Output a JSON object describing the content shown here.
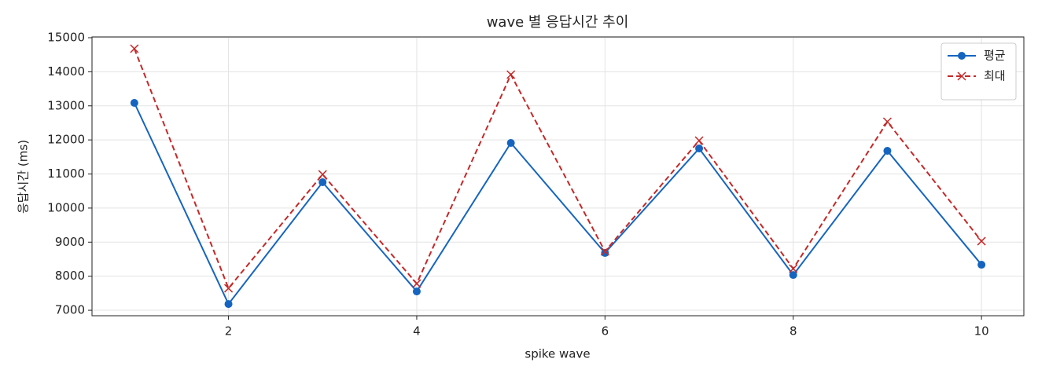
{
  "chart_data": {
    "type": "line",
    "title": "wave 별 응답시간 추이",
    "x_label": "spike wave",
    "y_label": "응답시간 (ms)",
    "x": [
      1,
      2,
      3,
      4,
      5,
      6,
      7,
      8,
      9,
      10
    ],
    "series": [
      {
        "name": "평균",
        "color": "#1565c0",
        "linestyle": "solid",
        "marker": "circle",
        "values": [
          13087,
          7184,
          10758,
          7553,
          11911,
          8683,
          11749,
          8037,
          11680,
          8337
        ]
      },
      {
        "name": "최대",
        "color": "#c62828",
        "linestyle": "dashed",
        "marker": "x",
        "values": [
          14677,
          7646,
          10988,
          7784,
          13916,
          8729,
          11980,
          8222,
          12533,
          9029
        ]
      }
    ],
    "xlim": [
      0.55,
      10.45
    ],
    "xticks": [
      2,
      4,
      6,
      8,
      10
    ],
    "ylim": [
      6840,
      15023
    ],
    "yticks": [
      7000,
      8000,
      9000,
      10000,
      11000,
      12000,
      13000,
      14000,
      15000
    ],
    "grid": true,
    "legend_position": "upper-right"
  }
}
